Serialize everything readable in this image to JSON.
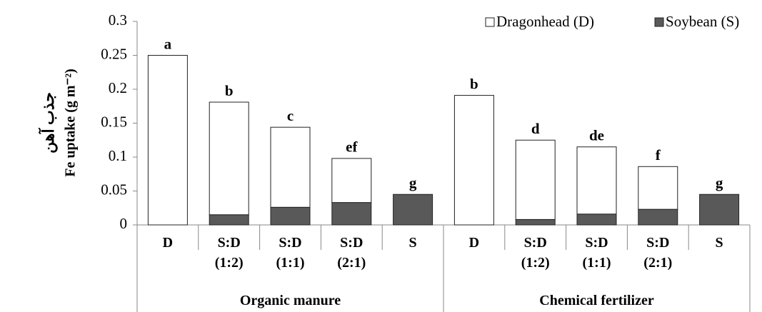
{
  "chart_data": {
    "type": "stacked_bar",
    "ylabel": "Fe uptake (g m⁻²)",
    "ylabel_fa": "جذب آهن",
    "categories": [
      "D",
      "S:D (1:2)",
      "S:D (1:1)",
      "S:D (2:1)",
      "S",
      "D",
      "S:D (1:2)",
      "S:D (1:1)",
      "S:D (2:1)",
      "S"
    ],
    "groups": [
      "Organic manure",
      "Chemical fertilizer"
    ],
    "letters": [
      "a",
      "b",
      "c",
      "ef",
      "g",
      "b",
      "d",
      "de",
      "f",
      "g"
    ],
    "series": [
      {
        "name": "Dragonhead (D)",
        "color": "#ffffff",
        "values": [
          0.25,
          0.166,
          0.118,
          0.065,
          0,
          0.191,
          0.117,
          0.099,
          0.063,
          0
        ]
      },
      {
        "name": "Soybean (S)",
        "color": "#595959",
        "values": [
          0,
          0.015,
          0.026,
          0.033,
          0.045,
          0,
          0.008,
          0.016,
          0.023,
          0.045
        ]
      }
    ],
    "ylim": [
      0,
      0.3
    ],
    "yticks": [
      0,
      0.05,
      0.1,
      0.15,
      0.2,
      0.25,
      0.3
    ],
    "legend": "top-right",
    "grid": false
  }
}
